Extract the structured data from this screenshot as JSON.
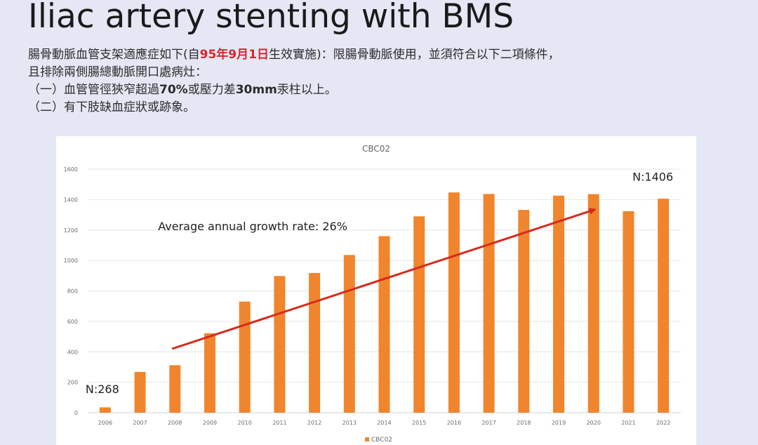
{
  "slide": {
    "title": "Iliac artery stenting with BMS",
    "line1_a": "腸骨動脈血管支架適應症如下(自",
    "line1_date": "95年9月1日",
    "line1_b": "生效實施)：限腸骨動脈使用，並須符合以下二項條件，",
    "line2": "且排除兩側腸總動脈開口處病灶：",
    "line3_a": "（一）血管管徑狹窄超過",
    "line3_pct": "70%",
    "line3_b": "或壓力差",
    "line3_mm": "30mm",
    "line3_c": "汞柱以上。",
    "line4": "（二）有下肢缺血症狀或跡象。"
  },
  "chart_data": {
    "type": "bar",
    "title": "CBC02",
    "categories": [
      "2006",
      "2007",
      "2008",
      "2009",
      "2010",
      "2011",
      "2012",
      "2013",
      "2014",
      "2015",
      "2016",
      "2017",
      "2018",
      "2019",
      "2020",
      "2021",
      "2022"
    ],
    "series": [
      {
        "name": "CBC02",
        "values": [
          35,
          268,
          312,
          522,
          730,
          898,
          918,
          1036,
          1160,
          1290,
          1447,
          1437,
          1332,
          1426,
          1436,
          1324,
          1406
        ]
      }
    ],
    "ylim": [
      0,
      1600
    ],
    "yticks": [
      "0",
      "200",
      "400",
      "600",
      "800",
      "1000",
      "1200",
      "1400",
      "1600"
    ],
    "ytick_values": [
      0,
      200,
      400,
      600,
      800,
      1000,
      1200,
      1400,
      1600
    ],
    "grid": true,
    "legend": "bottom",
    "bar_color": "#f0852d",
    "arrow_color": "#d62b1e",
    "annotations": {
      "start_label": "N:268",
      "end_label": "N:1406",
      "growth_label": "Average annual growth rate: 26%"
    },
    "trend_arrow": {
      "from": [
        "2008",
        420
      ],
      "to": [
        "2020",
        1335
      ]
    }
  }
}
